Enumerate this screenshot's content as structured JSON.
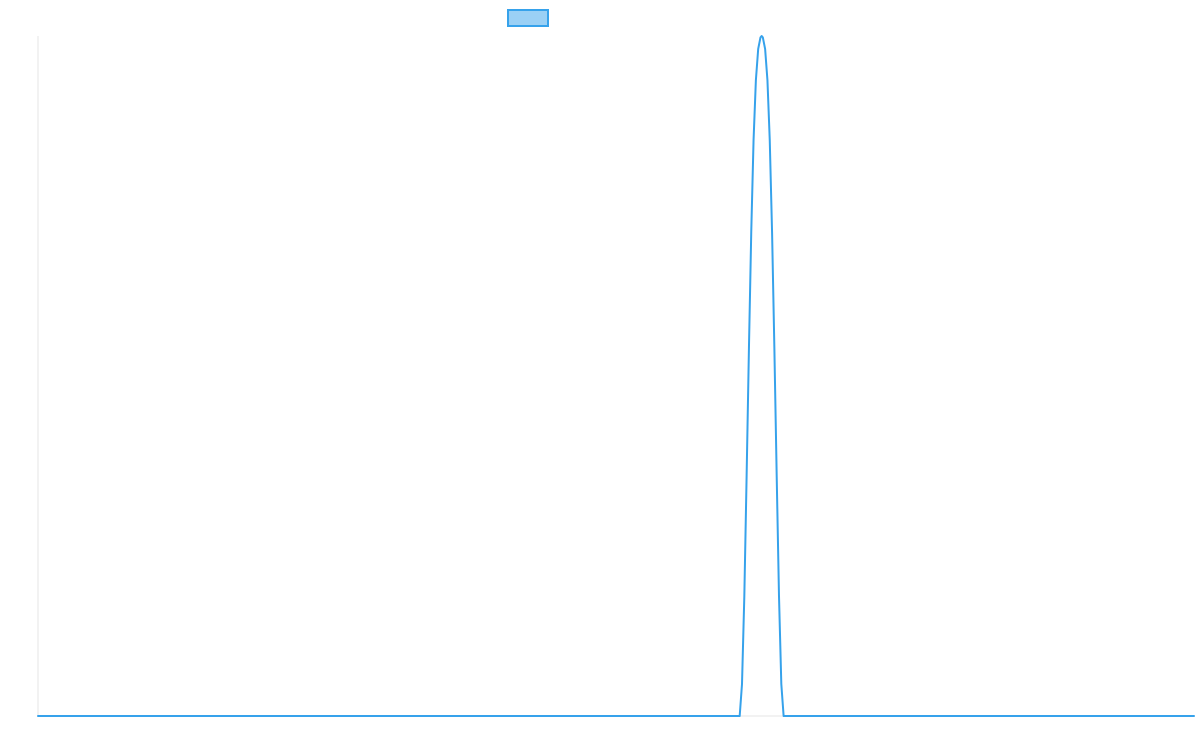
{
  "chart_data": {
    "type": "line",
    "title": "",
    "xlabel": "",
    "ylabel": "",
    "xlim": [
      0,
      100
    ],
    "ylim": [
      0,
      100
    ],
    "grid": false,
    "legend": {
      "placement": "top-center",
      "entries": [
        {
          "label": "",
          "swatch_fill": "#9ad0f5",
          "swatch_stroke": "#36a2eb"
        }
      ]
    },
    "series": [
      {
        "color": "#36a2eb",
        "x": [
          0,
          60.7,
          60.9,
          61.1,
          61.3,
          61.5,
          61.7,
          61.9,
          62.1,
          62.3,
          62.5,
          62.6,
          62.7,
          62.9,
          63.1,
          63.3,
          63.5,
          63.7,
          63.9,
          64.1,
          64.3,
          64.5,
          100
        ],
        "y": [
          0,
          0,
          4.7,
          17.6,
          35.4,
          54.1,
          71.2,
          84.7,
          93.5,
          98.1,
          99.8,
          100,
          99.8,
          98.1,
          93.5,
          84.7,
          71.2,
          54.1,
          35.4,
          17.6,
          4.7,
          0,
          0
        ]
      }
    ]
  }
}
